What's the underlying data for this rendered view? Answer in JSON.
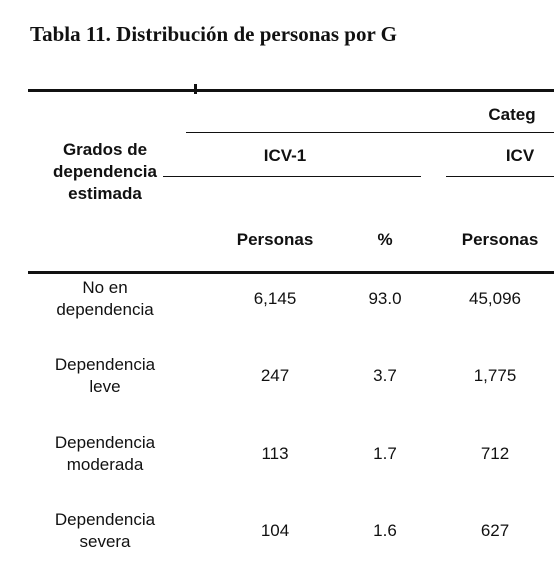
{
  "title": "Tabla 11. Distribución de personas por G",
  "table": {
    "header": {
      "row_header": "Grados de dependencia estimada",
      "group": "Categ",
      "subgroups": [
        "ICV-1",
        "ICV"
      ],
      "columns": [
        "Personas",
        "%",
        "Personas"
      ]
    },
    "rows": [
      [
        "No en dependencia",
        "6,145",
        "93.0",
        "45,096"
      ],
      [
        "Dependencia leve",
        "247",
        "3.7",
        "1,775"
      ],
      [
        "Dependencia moderada",
        "113",
        "1.7",
        "712"
      ],
      [
        "Dependencia severa",
        "104",
        "1.6",
        "627"
      ]
    ]
  }
}
